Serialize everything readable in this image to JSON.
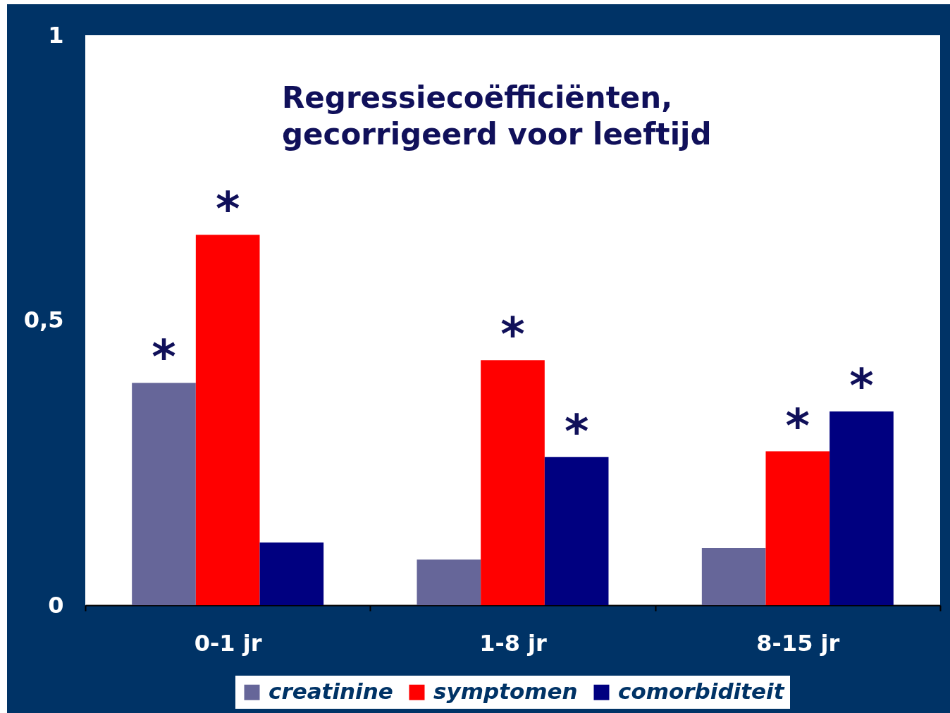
{
  "chart_data": {
    "type": "bar",
    "title": "Regressiecoëfficiënten, gecorrigeerd voor leeftijd",
    "categories": [
      "0-1 jr",
      "1-8 jr",
      "8-15 jr"
    ],
    "series": [
      {
        "name": "creatinine",
        "color": "#666699",
        "values": [
          0.39,
          0.08,
          0.1
        ],
        "value_labels": [
          "*",
          null,
          null
        ]
      },
      {
        "name": "symptomen",
        "color": "#ff0000",
        "values": [
          0.65,
          0.43,
          0.27
        ],
        "value_labels": [
          "*",
          "*",
          "*"
        ]
      },
      {
        "name": "comorbiditeit",
        "color": "#000080",
        "values": [
          0.11,
          0.26,
          0.34
        ],
        "value_labels": [
          null,
          "*",
          "*"
        ]
      }
    ],
    "ylim": [
      0,
      1
    ],
    "yticks": [
      0,
      {
        "value": 0.5,
        "label": "0,5"
      },
      1
    ],
    "legend": "bottom"
  }
}
